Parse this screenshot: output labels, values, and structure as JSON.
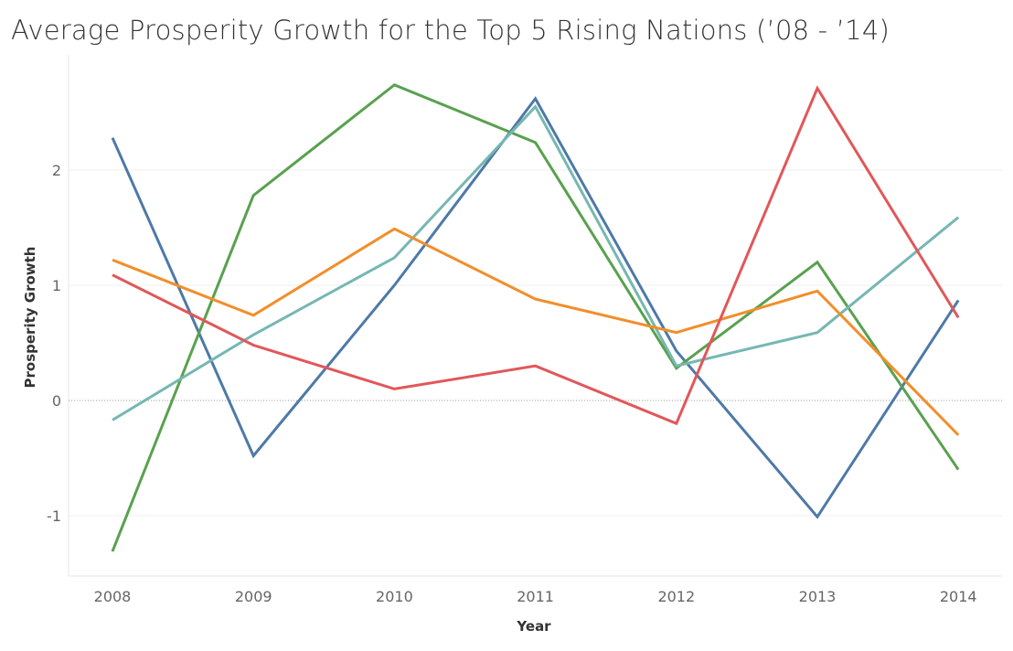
{
  "chart_data": {
    "type": "line",
    "title": "Average Prosperity Growth for the Top 5 Rising Nations (’08 - ’14)",
    "xlabel": "Year",
    "ylabel": "Prosperity Growth",
    "categories": [
      "2008",
      "2009",
      "2010",
      "2011",
      "2012",
      "2013",
      "2014"
    ],
    "yticks": [
      "2",
      "1",
      "0",
      "-1"
    ],
    "ytick_values": [
      2,
      1,
      0,
      -1
    ],
    "ylim": [
      -1.53,
      2.78
    ],
    "grid": true,
    "legend": "none",
    "series": [
      {
        "color": "#4e79a7",
        "values": [
          2.28,
          -0.48,
          1.0,
          2.62,
          0.43,
          -1.01,
          0.87
        ]
      },
      {
        "color": "#59a14f",
        "values": [
          -1.31,
          1.78,
          2.74,
          2.24,
          0.28,
          1.2,
          -0.6
        ]
      },
      {
        "color": "#76b7b2",
        "values": [
          -0.17,
          0.57,
          1.24,
          2.55,
          0.3,
          0.59,
          1.59
        ]
      },
      {
        "color": "#f28e2b",
        "values": [
          1.22,
          0.74,
          1.49,
          0.88,
          0.59,
          0.95,
          -0.3
        ]
      },
      {
        "color": "#e15759",
        "values": [
          1.09,
          0.48,
          0.1,
          0.3,
          -0.2,
          2.71,
          0.72
        ]
      }
    ]
  }
}
